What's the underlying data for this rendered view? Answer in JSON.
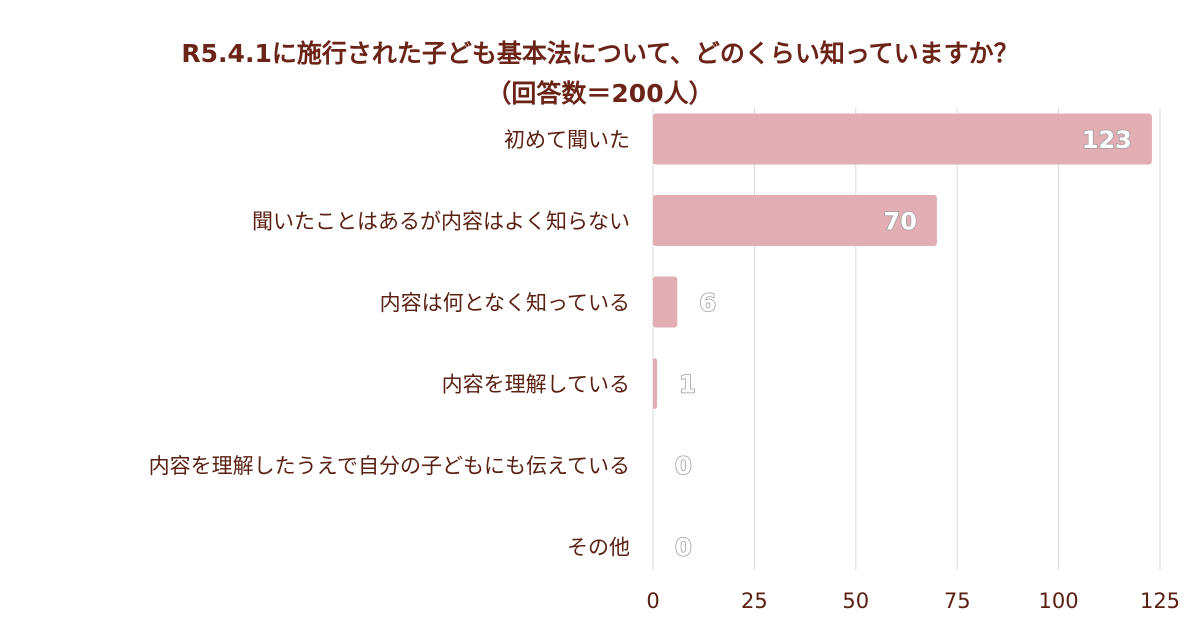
{
  "chart_data": {
    "type": "bar",
    "orientation": "horizontal",
    "title": "R5.4.1に施行された子ども基本法について、どのくらい知っていますか？",
    "subtitle": "（回答数＝200人）",
    "categories": [
      "初めて聞いた",
      "聞いたことはあるが内容はよく知らない",
      "内容は何となく知っている",
      "内容を理解している",
      "内容を理解したうえで自分の子どもにも伝えている",
      "その他"
    ],
    "values": [
      123,
      70,
      6,
      1,
      0,
      0
    ],
    "data_labels": [
      "123",
      "70",
      "6",
      "1",
      "0",
      "0"
    ],
    "xlim": [
      0,
      125
    ],
    "xticks": [
      0,
      25,
      50,
      75,
      100,
      125
    ],
    "xtick_labels": [
      "0",
      "25",
      "50",
      "75",
      "100",
      "125"
    ],
    "grid": true,
    "colors": {
      "bar": "#e2aeb4",
      "title": "#6b2417",
      "text": "#5a2012",
      "grid": "#d9d9d9"
    }
  }
}
